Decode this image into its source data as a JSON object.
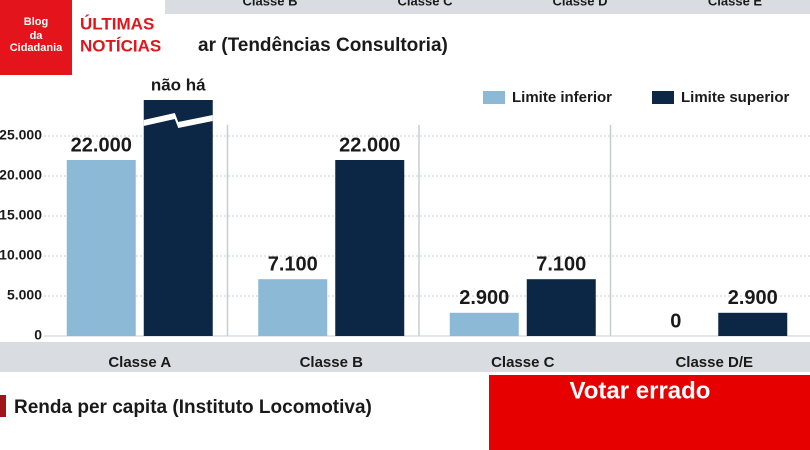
{
  "header_strip": [
    "Classe B",
    "Classe C",
    "Classe D",
    "Classe E"
  ],
  "logo": {
    "line1": "Blog",
    "line2": "da",
    "line3": "Cidadania",
    "tag1": "ÚLTIMAS",
    "tag2": "NOTÍCIAS"
  },
  "chart_data": {
    "type": "bar",
    "title": "ar (Tendências Consultoria)",
    "categories": [
      "Classe A",
      "Classe B",
      "Classe C",
      "Classe D/E"
    ],
    "series": [
      {
        "name": "Limite inferior",
        "color": "#8cbad6",
        "values": [
          22000,
          7100,
          2900,
          0
        ],
        "value_labels": [
          "22.000",
          "7.100",
          "2.900",
          "0"
        ]
      },
      {
        "name": "Limite superior",
        "color": "#0c2746",
        "values": [
          null,
          22000,
          7100,
          2900
        ],
        "value_labels": [
          "não há",
          "22.000",
          "7.100",
          "2.900"
        ]
      }
    ],
    "ylim": [
      0,
      25000
    ],
    "yticks": [
      {
        "value": 0,
        "label": "0"
      },
      {
        "value": 5000,
        "label": "5.000"
      },
      {
        "value": 10000,
        "label": "10.000"
      },
      {
        "value": 15000,
        "label": "15.000"
      },
      {
        "value": 20000,
        "label": "20.000"
      },
      {
        "value": 25000,
        "label": "25.000"
      }
    ],
    "grid": true,
    "legend": "top-right"
  },
  "next_section_title": "Renda per capita (Instituto Locomotiva)",
  "banner": "Votar errado"
}
